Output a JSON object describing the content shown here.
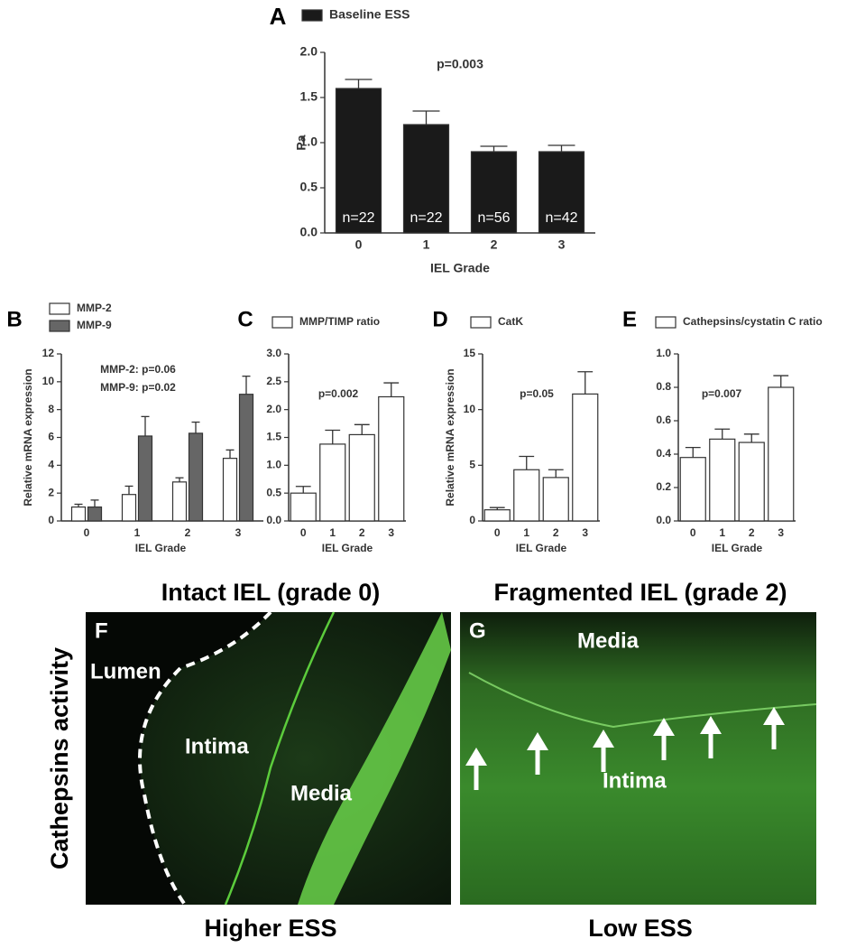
{
  "chart_data": [
    {
      "type": "bar",
      "panel": "A",
      "ylabel": "Pa",
      "xlabel": "IEL Grade",
      "annotations": [
        "p=0.003"
      ],
      "categories": [
        "0",
        "1",
        "2",
        "3"
      ],
      "series": [
        {
          "name": "Baseline ESS",
          "color": "#1a1a1a",
          "values": [
            1.6,
            1.2,
            0.9,
            0.9
          ],
          "errors": [
            0.1,
            0.15,
            0.06,
            0.07
          ]
        }
      ],
      "bar_labels": [
        "n=22",
        "n=22",
        "n=56",
        "n=42"
      ],
      "ylim": [
        0,
        2
      ],
      "yticks": [
        {
          "value": 0,
          "label": "0.0"
        },
        0.5,
        {
          "value": 1,
          "label": "1.0"
        },
        1.5,
        {
          "value": 2,
          "label": "2.0"
        }
      ]
    },
    {
      "type": "bar",
      "panel": "B",
      "ylabel": "Relative mRNA expression",
      "xlabel": "IEL Grade",
      "annotations": [
        "MMP-2: p=0.06",
        "MMP-9: p=0.02"
      ],
      "categories": [
        "0",
        "1",
        "2",
        "3"
      ],
      "series": [
        {
          "name": "MMP-2",
          "color": "#ffffff",
          "values": [
            1.0,
            1.9,
            2.8,
            4.5
          ],
          "errors": [
            0.2,
            0.6,
            0.3,
            0.6
          ]
        },
        {
          "name": "MMP-9",
          "color": "#666666",
          "values": [
            1.0,
            6.1,
            6.3,
            9.1
          ],
          "errors": [
            0.5,
            1.4,
            0.8,
            1.3
          ]
        }
      ],
      "ylim": [
        0,
        12
      ],
      "yticks": [
        0,
        2,
        4,
        6,
        8,
        10,
        12
      ]
    },
    {
      "type": "bar",
      "panel": "C",
      "xlabel": "IEL Grade",
      "annotations": [
        "p=0.002"
      ],
      "categories": [
        "0",
        "1",
        "2",
        "3"
      ],
      "series": [
        {
          "name": "MMP/TIMP ratio",
          "color": "#ffffff",
          "values": [
            0.5,
            1.38,
            1.55,
            2.23
          ],
          "errors": [
            0.12,
            0.25,
            0.18,
            0.25
          ]
        }
      ],
      "ylim": [
        0,
        3
      ],
      "yticks": [
        {
          "value": 0,
          "label": "0.0"
        },
        0.5,
        {
          "value": 1,
          "label": "1.0"
        },
        1.5,
        {
          "value": 2,
          "label": "2.0"
        },
        2.5,
        {
          "value": 3,
          "label": "3.0"
        }
      ]
    },
    {
      "type": "bar",
      "panel": "D",
      "ylabel": "Relative mRNA expression",
      "xlabel": "IEL Grade",
      "annotations": [
        "p=0.05"
      ],
      "categories": [
        "0",
        "1",
        "2",
        "3"
      ],
      "series": [
        {
          "name": "CatK",
          "color": "#ffffff",
          "values": [
            1.0,
            4.6,
            3.9,
            11.4
          ],
          "errors": [
            0.2,
            1.2,
            0.7,
            2.0
          ]
        }
      ],
      "ylim": [
        0,
        15
      ],
      "yticks": [
        0,
        5,
        10,
        15
      ]
    },
    {
      "type": "bar",
      "panel": "E",
      "xlabel": "IEL Grade",
      "annotations": [
        "p=0.007"
      ],
      "categories": [
        "0",
        "1",
        "2",
        "3"
      ],
      "series": [
        {
          "name": "Cathepsins/cystatin C ratio",
          "color": "#ffffff",
          "values": [
            0.38,
            0.49,
            0.47,
            0.8
          ],
          "errors": [
            0.06,
            0.06,
            0.05,
            0.07
          ]
        }
      ],
      "ylim": [
        0,
        1
      ],
      "yticks": [
        {
          "value": 0,
          "label": "0.0"
        },
        0.2,
        0.4,
        0.6,
        0.8,
        {
          "value": 1,
          "label": "1.0"
        }
      ]
    }
  ],
  "images": {
    "side_label": "Cathepsins activity",
    "panels": [
      {
        "panel": "F",
        "heading": "Intact IEL (grade 0)",
        "footer": "Higher ESS",
        "labels": [
          "Lumen",
          "Intima",
          "Media"
        ]
      },
      {
        "panel": "G",
        "heading": "Fragmented IEL (grade 2)",
        "footer": "Low ESS",
        "labels": [
          "Media",
          "Intima"
        ]
      }
    ]
  }
}
